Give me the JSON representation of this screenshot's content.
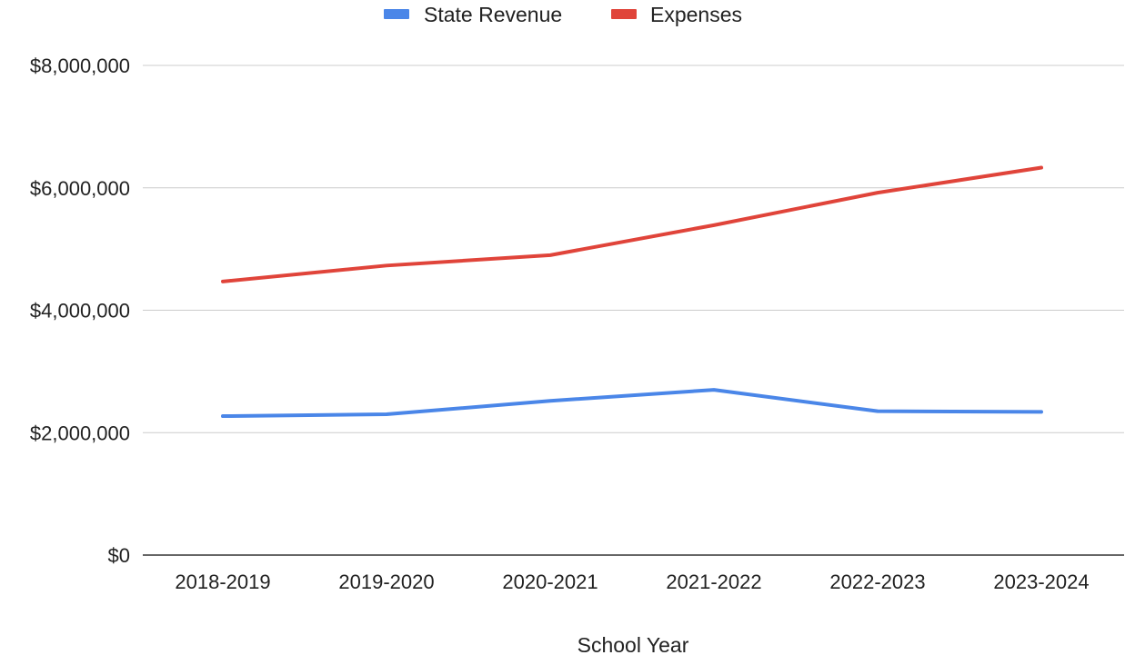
{
  "chart_data": {
    "type": "line",
    "title": "",
    "xlabel": "School Year",
    "ylabel": "",
    "categories": [
      "2018-2019",
      "2019-2020",
      "2020-2021",
      "2021-2022",
      "2022-2023",
      "2023-2024"
    ],
    "ylim": [
      0,
      8000000
    ],
    "yticks": [
      0,
      2000000,
      4000000,
      6000000,
      8000000
    ],
    "ytick_labels": [
      "$0",
      "$2,000,000",
      "$4,000,000",
      "$6,000,000",
      "$8,000,000"
    ],
    "grid": true,
    "legend_position": "top",
    "series": [
      {
        "name": "State Revenue",
        "color": "#4a86e8",
        "values": [
          2270000,
          2300000,
          2520000,
          2700000,
          2350000,
          2340000
        ]
      },
      {
        "name": "Expenses",
        "color": "#e0443a",
        "values": [
          4470000,
          4730000,
          4900000,
          5390000,
          5920000,
          6330000
        ]
      }
    ]
  }
}
